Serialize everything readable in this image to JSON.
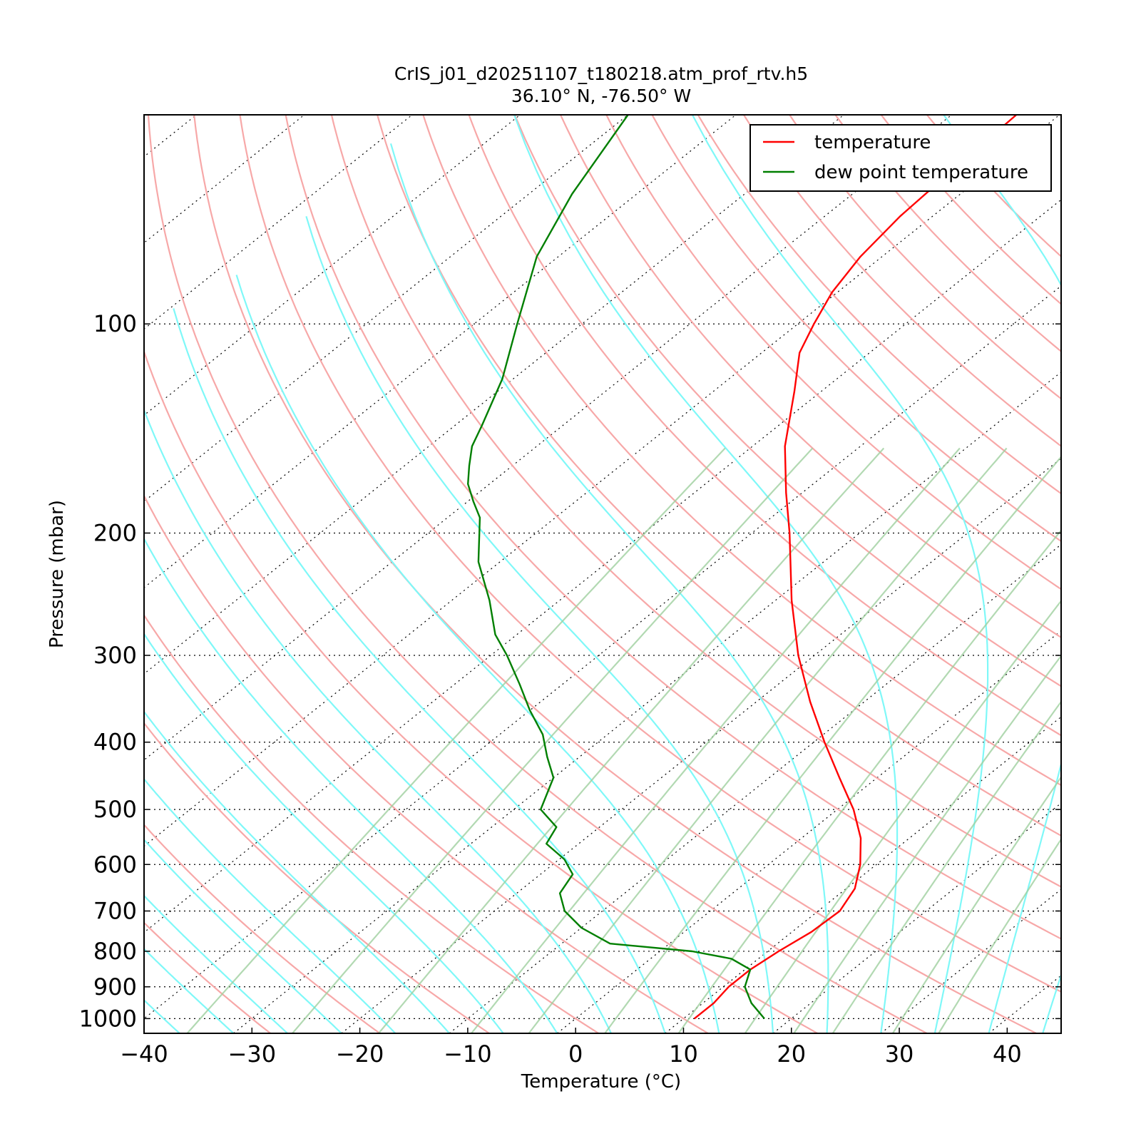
{
  "chart_data": {
    "type": "line",
    "subtype": "skew-T log-P diagram",
    "title": "CrIS_j01_d20251107_t180218.atm_prof_rtv.h5",
    "subtitle": "36.10° N, -76.50° W",
    "xlabel": "Temperature (°C)",
    "ylabel": "Pressure (mbar)",
    "xlim": [
      -40,
      45
    ],
    "ylim": [
      1050,
      50
    ],
    "y_scale": "log",
    "x_ticks": [
      "−40",
      "−30",
      "−20",
      "−10",
      "0",
      "10",
      "20",
      "30",
      "40"
    ],
    "y_ticks": [
      "100",
      "200",
      "300",
      "400",
      "500",
      "600",
      "700",
      "800",
      "900",
      "1000"
    ],
    "legend": {
      "position": "top-right",
      "entries": [
        "temperature",
        "dew point temperature"
      ]
    },
    "grid": "dotted isobars and skewed isotherms; dry adiabats (pink), moist adiabats (cyan), mixing ratio lines (green)",
    "series": [
      {
        "name": "temperature",
        "color": "#ff0000",
        "points": [
          {
            "p": 1000,
            "t": 11.0
          },
          {
            "p": 950,
            "t": 11.0
          },
          {
            "p": 900,
            "t": 10.5
          },
          {
            "p": 850,
            "t": 10.5
          },
          {
            "p": 800,
            "t": 11.0
          },
          {
            "p": 750,
            "t": 11.8
          },
          {
            "p": 700,
            "t": 12.0
          },
          {
            "p": 650,
            "t": 10.8
          },
          {
            "p": 600,
            "t": 8.5
          },
          {
            "p": 550,
            "t": 5.5
          },
          {
            "p": 500,
            "t": 1.5
          },
          {
            "p": 450,
            "t": -3.5
          },
          {
            "p": 400,
            "t": -9.0
          },
          {
            "p": 350,
            "t": -15.0
          },
          {
            "p": 300,
            "t": -21.5
          },
          {
            "p": 250,
            "t": -28.5
          },
          {
            "p": 200,
            "t": -36.5
          },
          {
            "p": 175,
            "t": -41.5
          },
          {
            "p": 150,
            "t": -47.0
          },
          {
            "p": 125,
            "t": -52.5
          },
          {
            "p": 110,
            "t": -56.5
          },
          {
            "p": 100,
            "t": -58.5
          },
          {
            "p": 90,
            "t": -60.5
          },
          {
            "p": 80,
            "t": -62.0
          },
          {
            "p": 70,
            "t": -63.0
          },
          {
            "p": 60,
            "t": -63.5
          },
          {
            "p": 50,
            "t": -64.0
          }
        ]
      },
      {
        "name": "dew point temperature",
        "color": "#007f00",
        "points": [
          {
            "p": 1000,
            "t": 17.5
          },
          {
            "p": 950,
            "t": 14.5
          },
          {
            "p": 900,
            "t": 12.0
          },
          {
            "p": 850,
            "t": 10.5
          },
          {
            "p": 820,
            "t": 7.5
          },
          {
            "p": 800,
            "t": 3.0
          },
          {
            "p": 780,
            "t": -5.5
          },
          {
            "p": 740,
            "t": -10.0
          },
          {
            "p": 700,
            "t": -13.5
          },
          {
            "p": 660,
            "t": -16.0
          },
          {
            "p": 620,
            "t": -17.0
          },
          {
            "p": 590,
            "t": -19.5
          },
          {
            "p": 560,
            "t": -23.0
          },
          {
            "p": 530,
            "t": -24.0
          },
          {
            "p": 500,
            "t": -27.5
          },
          {
            "p": 450,
            "t": -30.0
          },
          {
            "p": 420,
            "t": -33.0
          },
          {
            "p": 390,
            "t": -36.0
          },
          {
            "p": 360,
            "t": -40.0
          },
          {
            "p": 330,
            "t": -44.0
          },
          {
            "p": 300,
            "t": -48.5
          },
          {
            "p": 280,
            "t": -52.0
          },
          {
            "p": 250,
            "t": -56.5
          },
          {
            "p": 220,
            "t": -62.0
          },
          {
            "p": 190,
            "t": -67.0
          },
          {
            "p": 180,
            "t": -69.5
          },
          {
            "p": 170,
            "t": -72.0
          },
          {
            "p": 160,
            "t": -74.0
          },
          {
            "p": 150,
            "t": -76.0
          },
          {
            "p": 140,
            "t": -77.5
          },
          {
            "p": 120,
            "t": -81.0
          },
          {
            "p": 100,
            "t": -86.0
          },
          {
            "p": 80,
            "t": -92.0
          },
          {
            "p": 65,
            "t": -96.0
          },
          {
            "p": 50,
            "t": -100.0
          }
        ]
      }
    ]
  }
}
